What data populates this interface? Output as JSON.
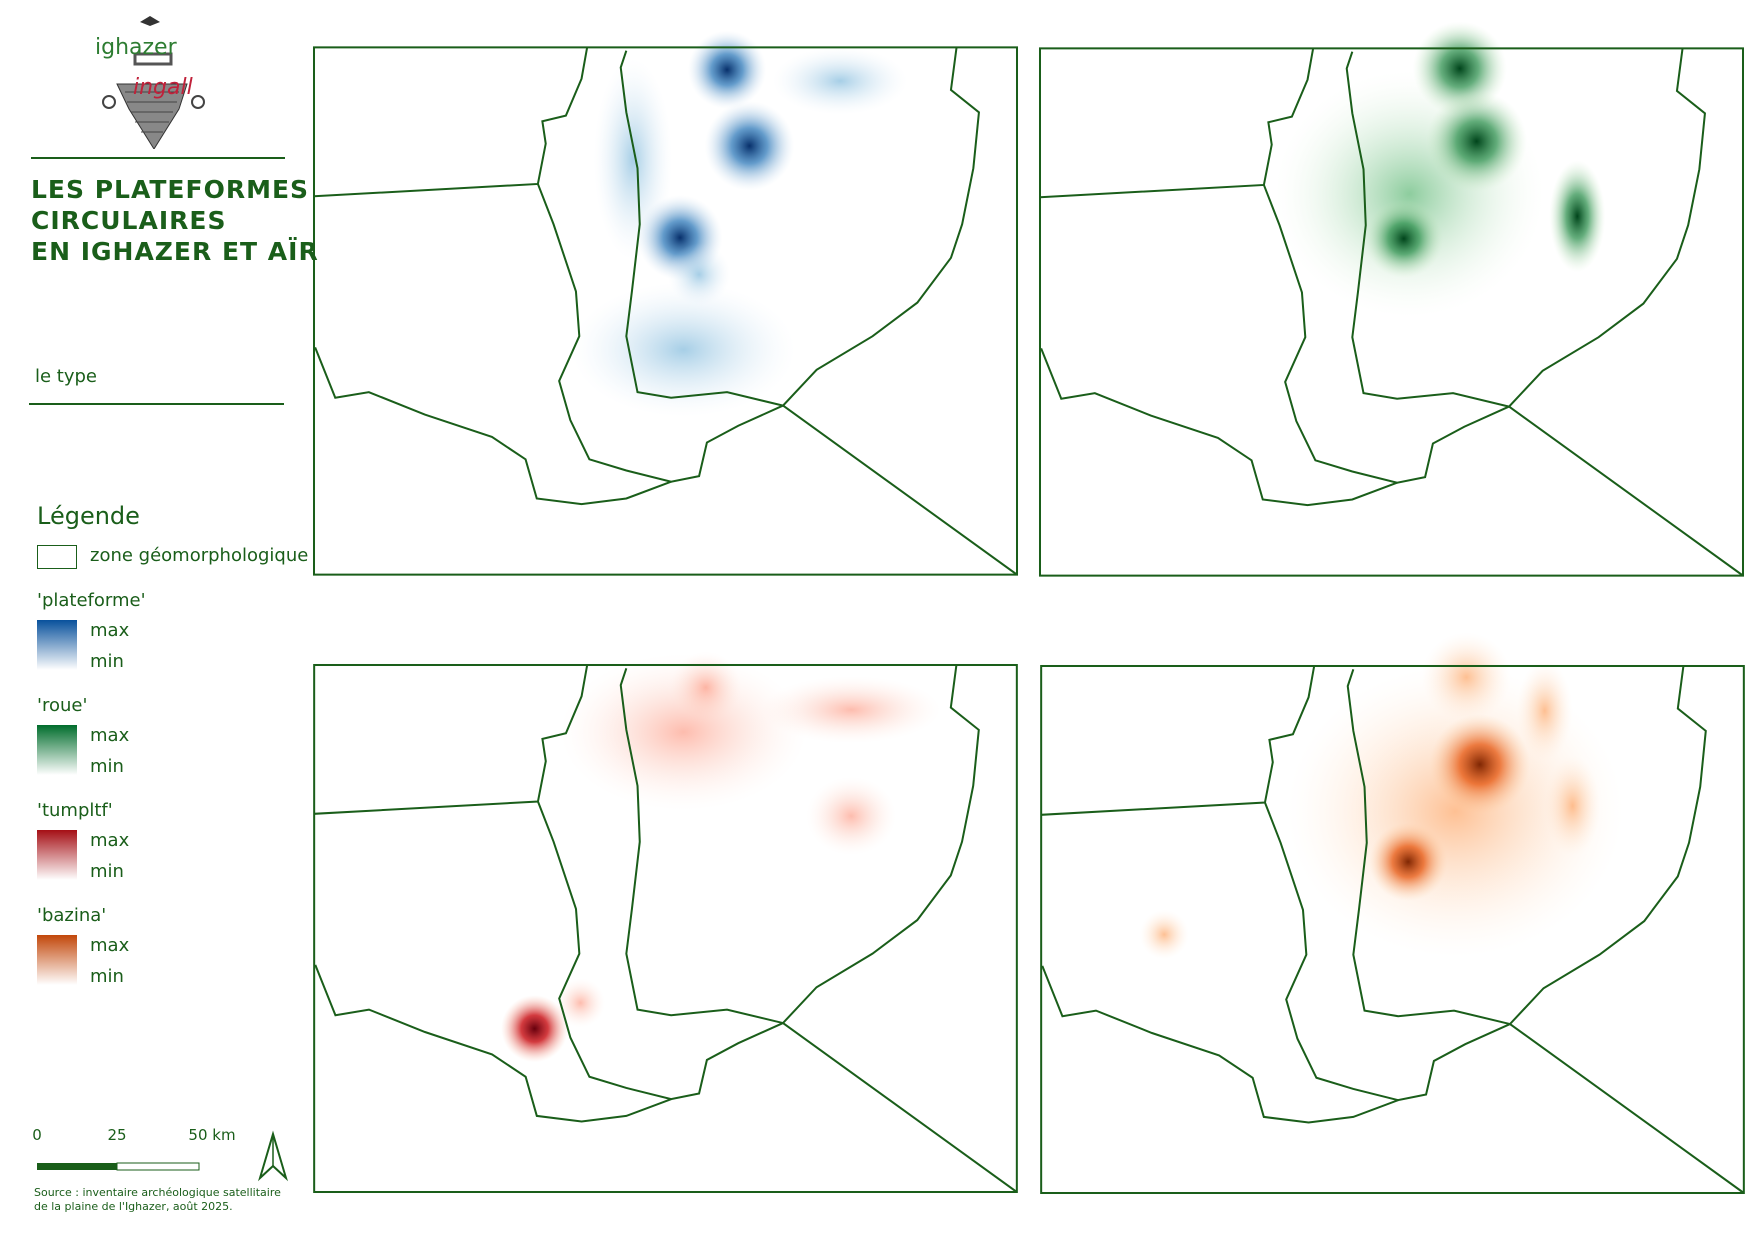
{
  "logo": {
    "line1": "ighazer",
    "line2": "ingall"
  },
  "title": [
    "LES PLATEFORMES",
    "CIRCULAIRES",
    "EN IGHAZER ET AÏR"
  ],
  "subtitle": "le type",
  "legend": {
    "title": "Légende",
    "zone": "zone géomorphologique",
    "items": [
      {
        "name": "'plateforme'",
        "max": "max",
        "min": "min",
        "color": "#08519c"
      },
      {
        "name": "'roue'",
        "max": "max",
        "min": "min",
        "color": "#006d2c"
      },
      {
        "name": "'tumpltf'",
        "max": "max",
        "min": "min",
        "color": "#a50f15"
      },
      {
        "name": "'bazina'",
        "max": "max",
        "min": "min",
        "color": "#c2470a"
      }
    ]
  },
  "scale_bar": {
    "labels": [
      "0",
      "25",
      "50 km"
    ]
  },
  "source": [
    "Source : inventaire archéologique satellitaire",
    "de la plaine de l'Ighazer, août 2025."
  ]
}
